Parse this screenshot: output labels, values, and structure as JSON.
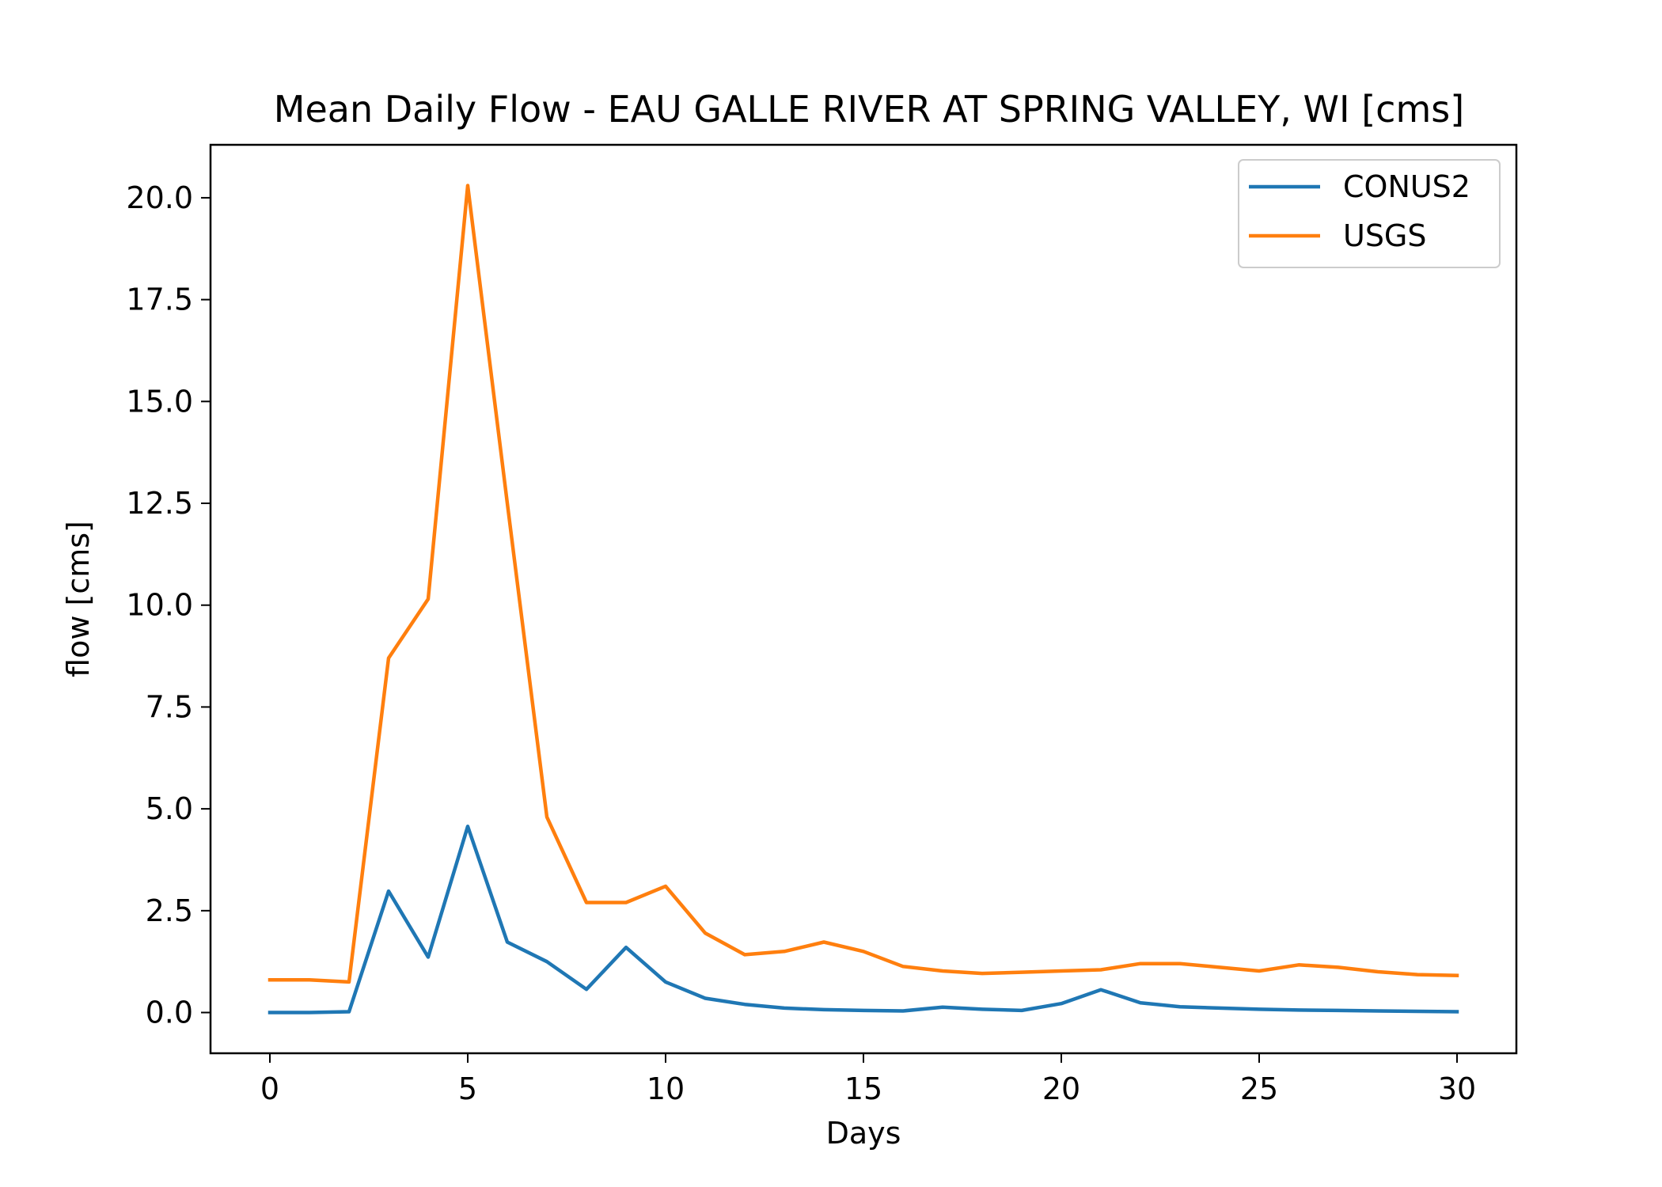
{
  "chart_data": {
    "type": "line",
    "title": "Mean Daily Flow - EAU GALLE RIVER AT SPRING VALLEY, WI [cms]",
    "xlabel": "Days",
    "ylabel": "flow [cms]",
    "xlim": [
      -1.5,
      31.5
    ],
    "ylim": [
      -1.0,
      21.3
    ],
    "xticks": [
      0,
      5,
      10,
      15,
      20,
      25,
      30
    ],
    "xtick_labels": [
      "0",
      "5",
      "10",
      "15",
      "20",
      "25",
      "30"
    ],
    "yticks": [
      0.0,
      2.5,
      5.0,
      7.5,
      10.0,
      12.5,
      15.0,
      17.5,
      20.0
    ],
    "ytick_labels": [
      "0.0",
      "2.5",
      "5.0",
      "7.5",
      "10.0",
      "12.5",
      "15.0",
      "17.5",
      "20.0"
    ],
    "grid": false,
    "legend_position": "top-right",
    "x": [
      0,
      1,
      2,
      3,
      4,
      5,
      6,
      7,
      8,
      9,
      10,
      11,
      12,
      13,
      14,
      15,
      16,
      17,
      18,
      19,
      20,
      21,
      22,
      23,
      24,
      25,
      26,
      27,
      28,
      29,
      30
    ],
    "series": [
      {
        "name": "CONUS2",
        "color": "#1f77b4",
        "values": [
          0.0,
          0.0,
          0.02,
          2.98,
          1.36,
          4.57,
          1.73,
          1.25,
          0.57,
          1.6,
          0.75,
          0.35,
          0.2,
          0.11,
          0.07,
          0.05,
          0.04,
          0.13,
          0.08,
          0.05,
          0.22,
          0.56,
          0.24,
          0.14,
          0.11,
          0.08,
          0.06,
          0.05,
          0.04,
          0.03,
          0.02
        ]
      },
      {
        "name": "USGS",
        "color": "#ff7f0e",
        "values": [
          0.8,
          0.8,
          0.75,
          8.7,
          10.15,
          20.3,
          12.5,
          4.8,
          2.7,
          2.7,
          3.1,
          1.95,
          1.42,
          1.5,
          1.73,
          1.5,
          1.13,
          1.02,
          0.96,
          0.99,
          1.02,
          1.05,
          1.2,
          1.2,
          1.11,
          1.02,
          1.17,
          1.11,
          1.0,
          0.93,
          0.91
        ]
      }
    ]
  }
}
